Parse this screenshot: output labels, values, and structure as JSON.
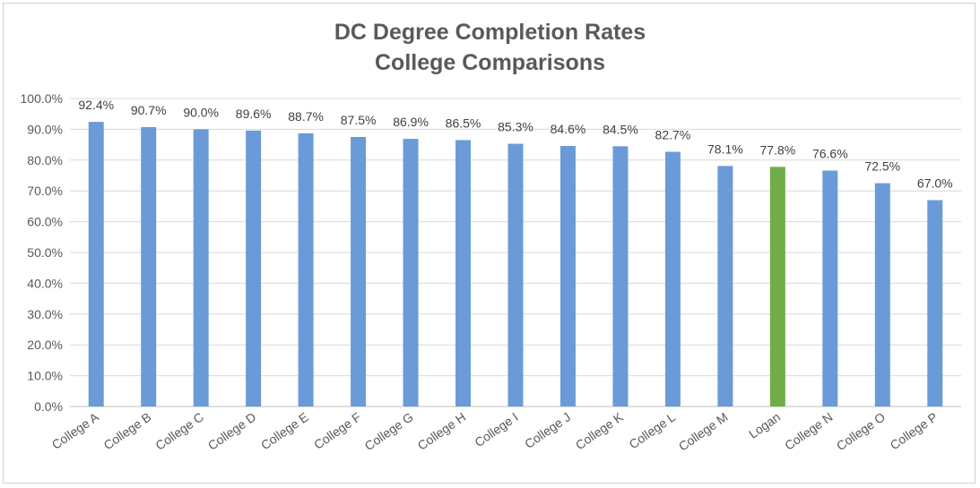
{
  "chart_data": {
    "type": "bar",
    "title": "DC Degree Completion Rates",
    "subtitle": "College Comparisons",
    "xlabel": "",
    "ylabel": "",
    "ylim": [
      0,
      100
    ],
    "ytick_labels": [
      "0.0%",
      "10.0%",
      "20.0%",
      "30.0%",
      "40.0%",
      "50.0%",
      "60.0%",
      "70.0%",
      "80.0%",
      "90.0%",
      "100.0%"
    ],
    "categories": [
      "College A",
      "College B",
      "College C",
      "College D",
      "College E",
      "College F",
      "College G",
      "College H",
      "College I",
      "College J",
      "College K",
      "College L",
      "College M",
      "Logan",
      "College N",
      "College O",
      "College P"
    ],
    "values": [
      92.4,
      90.7,
      90.0,
      89.6,
      88.7,
      87.5,
      86.9,
      86.5,
      85.3,
      84.6,
      84.5,
      82.7,
      78.1,
      77.8,
      76.6,
      72.5,
      67.0
    ],
    "data_labels": [
      "92.4%",
      "90.7%",
      "90.0%",
      "89.6%",
      "88.7%",
      "87.5%",
      "86.9%",
      "86.5%",
      "85.3%",
      "84.6%",
      "84.5%",
      "82.7%",
      "78.1%",
      "77.8%",
      "76.6%",
      "72.5%",
      "67.0%"
    ],
    "grid": true,
    "legend": "none",
    "colors": {
      "default_bar": "#6a9bd8",
      "highlight_bar": "#70ad47",
      "highlight_category": "Logan",
      "gridline": "#d9d9d9"
    }
  }
}
